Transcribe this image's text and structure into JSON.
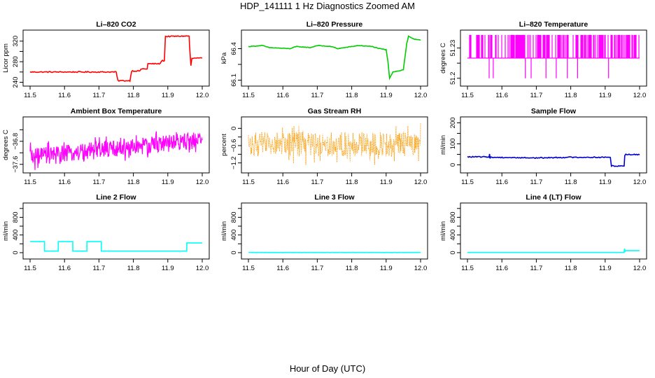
{
  "figure": {
    "title": "HDP_141111  1 Hz Diagnostics Zoomed AM",
    "xlabel": "Hour of Day (UTC)"
  },
  "chart_data": [
    {
      "type": "line",
      "title": "Li–820 CO2",
      "ylabel": "Licor ppm",
      "color": "#ff0000",
      "xlim": [
        11.5,
        12.0
      ],
      "ylim": [
        238,
        336
      ],
      "xticks": [
        11.5,
        11.6,
        11.7,
        11.8,
        11.9,
        12.0
      ],
      "yticks": [
        240,
        280,
        320
      ],
      "style": "step",
      "noise": 1,
      "x": [
        11.5,
        11.75,
        11.755,
        11.79,
        11.795,
        11.82,
        11.822,
        11.84,
        11.842,
        11.878,
        11.882,
        11.89,
        11.893,
        11.962,
        11.963,
        11.967,
        11.97,
        11.98,
        12.0
      ],
      "y": [
        260,
        260,
        243,
        243,
        262,
        262,
        266,
        266,
        276,
        276,
        282,
        282,
        329,
        330,
        312,
        272,
        286,
        287,
        287
      ]
    },
    {
      "type": "line",
      "title": "Li–820 Pressure",
      "ylabel": "kPa",
      "color": "#00cc00",
      "xlim": [
        11.5,
        12.0
      ],
      "ylim": [
        66.07,
        66.55
      ],
      "xticks": [
        11.5,
        11.6,
        11.7,
        11.8,
        11.9,
        12.0
      ],
      "yticks": [
        66.1,
        66.4
      ],
      "style": "step",
      "noise": 0.003,
      "x": [
        11.5,
        11.54,
        11.56,
        11.62,
        11.64,
        11.68,
        11.7,
        11.74,
        11.76,
        11.8,
        11.82,
        11.86,
        11.88,
        11.9,
        11.905,
        11.91,
        11.92,
        11.94,
        11.95,
        11.96,
        11.965,
        11.98,
        12.0
      ],
      "y": [
        66.42,
        66.43,
        66.41,
        66.4,
        66.42,
        66.41,
        66.43,
        66.42,
        66.4,
        66.42,
        66.43,
        66.42,
        66.4,
        66.39,
        66.28,
        66.12,
        66.18,
        66.19,
        66.2,
        66.45,
        66.52,
        66.49,
        66.48
      ]
    },
    {
      "type": "line",
      "title": "Li–820 Temperature",
      "ylabel": "degrees C",
      "color": "#ff00ff",
      "xlim": [
        11.5,
        12.0
      ],
      "ylim": [
        51.195,
        51.245
      ],
      "xticks": [
        11.5,
        11.6,
        11.7,
        11.8,
        11.9,
        12.0
      ],
      "yticks": [
        51.2,
        51.23
      ],
      "style": "binary",
      "base": 51.22,
      "high": 51.243,
      "low": 51.2,
      "dips": [
        11.563,
        11.575,
        11.668,
        11.685,
        11.728,
        11.758,
        11.79,
        11.82,
        11.91
      ]
    },
    {
      "type": "line",
      "title": "Ambient Box Temperature",
      "ylabel": "degrees C",
      "color": "#ff00ff",
      "xlim": [
        11.5,
        12.0
      ],
      "ylim": [
        -37.8,
        -36.05
      ],
      "xticks": [
        11.5,
        11.6,
        11.7,
        11.8,
        11.9,
        12.0
      ],
      "yticks": [
        -37.6,
        -36.8
      ],
      "style": "trendnoise",
      "start": -37.35,
      "end": -36.75,
      "amp": 0.6
    },
    {
      "type": "line",
      "title": "Gas Stream RH",
      "ylabel": "percent",
      "color": "#ff9900",
      "xlim": [
        11.5,
        12.0
      ],
      "ylim": [
        -1.45,
        0.3
      ],
      "xticks": [
        11.5,
        11.6,
        11.7,
        11.8,
        11.9,
        12.0
      ],
      "yticks": [
        -1.2,
        -0.6,
        0.0
      ],
      "style": "trendnoise",
      "start": -0.55,
      "end": -0.55,
      "amp": 0.85,
      "points": true
    },
    {
      "type": "line",
      "title": "Sample Flow",
      "ylabel": "ml/min",
      "color": "#0000cc",
      "xlim": [
        11.5,
        12.0
      ],
      "ylim": [
        -25,
        215
      ],
      "xticks": [
        11.5,
        11.6,
        11.7,
        11.8,
        11.9,
        12.0
      ],
      "yticks": [
        0,
        100,
        200
      ],
      "style": "step",
      "noise": 2.5,
      "x": [
        11.5,
        11.563,
        11.564,
        11.566,
        11.567,
        11.7,
        11.8,
        11.915,
        11.918,
        11.955,
        11.957,
        11.96,
        12.0
      ],
      "y": [
        38,
        38,
        52,
        30,
        36,
        33,
        36,
        36,
        -5,
        -5,
        45,
        50,
        48
      ]
    },
    {
      "type": "line",
      "title": "Line 2 Flow",
      "ylabel": "ml/min",
      "color": "#00ffff",
      "xlim": [
        11.5,
        12.0
      ],
      "ylim": [
        -80,
        1060
      ],
      "xticks": [
        11.5,
        11.6,
        11.7,
        11.8,
        11.9,
        12.0
      ],
      "yticks": [
        0,
        400,
        800
      ],
      "style": "step",
      "noise": 0,
      "x": [
        11.5,
        11.542,
        11.542,
        11.582,
        11.582,
        11.624,
        11.624,
        11.665,
        11.665,
        11.707,
        11.707,
        11.955,
        11.955,
        12.0
      ],
      "y": [
        250,
        250,
        35,
        35,
        250,
        250,
        35,
        35,
        250,
        250,
        35,
        35,
        220,
        220
      ]
    },
    {
      "type": "line",
      "title": "Line 3 Flow",
      "ylabel": "ml/min",
      "color": "#00ffff",
      "xlim": [
        11.5,
        12.0
      ],
      "ylim": [
        -80,
        1060
      ],
      "xticks": [
        11.5,
        11.6,
        11.7,
        11.8,
        11.9,
        12.0
      ],
      "yticks": [
        0,
        400,
        800
      ],
      "style": "step",
      "noise": 3,
      "x": [
        11.5,
        12.0
      ],
      "y": [
        5,
        5
      ]
    },
    {
      "type": "line",
      "title": "Line 4 (LT) Flow",
      "ylabel": "ml/min",
      "color": "#00ffff",
      "xlim": [
        11.5,
        12.0
      ],
      "ylim": [
        -80,
        1060
      ],
      "xticks": [
        11.5,
        11.6,
        11.7,
        11.8,
        11.9,
        12.0
      ],
      "yticks": [
        0,
        400,
        800
      ],
      "style": "step",
      "noise": 0,
      "x": [
        11.5,
        11.955,
        11.956,
        11.958,
        11.96,
        12.0
      ],
      "y": [
        5,
        5,
        90,
        30,
        45,
        45
      ]
    }
  ]
}
